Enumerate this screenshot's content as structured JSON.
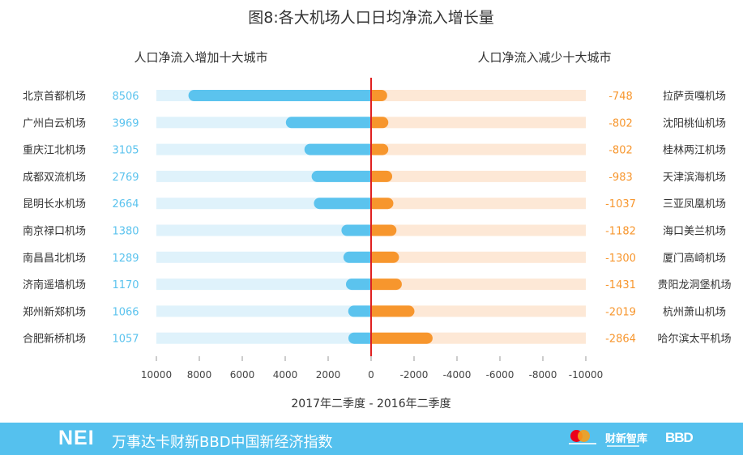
{
  "chart_data": {
    "type": "bar",
    "title": "图8:各大机场人口日均净流入增长量",
    "left_subtitle": "人口净流入增加十大城市",
    "right_subtitle": "人口净流入减少十大城市",
    "xlabel": "2017年二季度 - 2016年二季度",
    "xlim": [
      10000,
      -10000
    ],
    "x_ticks": [
      "10000",
      "8000",
      "6000",
      "4000",
      "2000",
      "0",
      "-2000",
      "-4000",
      "-6000",
      "-8000",
      "-10000"
    ],
    "series": [
      {
        "categories": [
          "北京首都机场",
          "广州白云机场",
          "重庆江北机场",
          "成都双流机场",
          "昆明长水机场",
          "南京禄口机场",
          "南昌昌北机场",
          "济南遥墙机场",
          "郑州新郑机场",
          "合肥新桥机场"
        ],
        "values": [
          8506,
          3969,
          3105,
          2769,
          2664,
          1380,
          1289,
          1170,
          1066,
          1057
        ],
        "color": "#5bc3ee",
        "track_color": "#dff2fb"
      },
      {
        "categories": [
          "拉萨贡嘎机场",
          "沈阳桃仙机场",
          "桂林两江机场",
          "天津滨海机场",
          "三亚凤凰机场",
          "海口美兰机场",
          "厦门高崎机场",
          "贵阳龙洞堡机场",
          "杭州萧山机场",
          "哈尔滨太平机场"
        ],
        "values": [
          -748,
          -802,
          -802,
          -983,
          -1037,
          -1182,
          -1300,
          -1431,
          -2019,
          -2864
        ],
        "color": "#f7962d",
        "track_color": "#fde8d6"
      }
    ],
    "zero_line_color": "#e02020",
    "grid": false
  },
  "footer": {
    "logo": "NEI",
    "index_name": "万事达卡财新BBD中国新经济指数",
    "partner_caixin": "财新智库",
    "partner_bbd": "BBD"
  }
}
